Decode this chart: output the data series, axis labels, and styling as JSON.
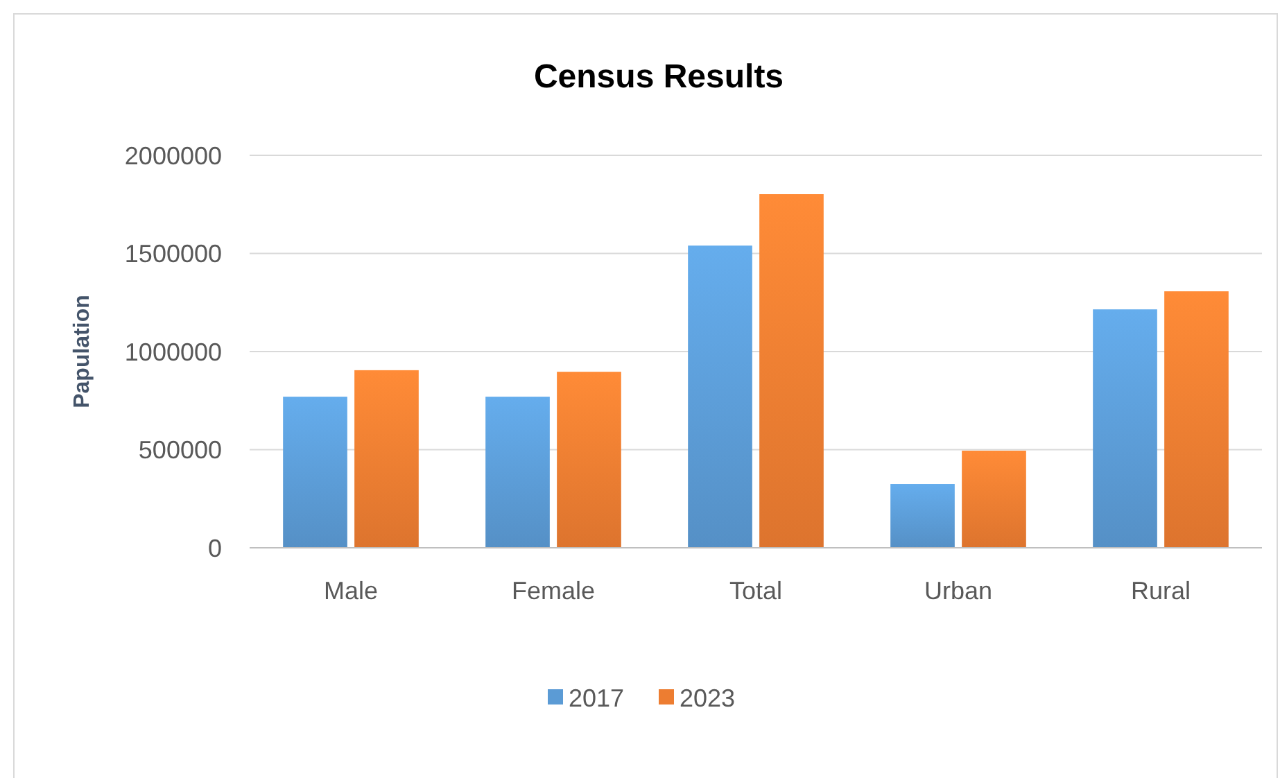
{
  "chart_data": {
    "type": "bar",
    "title": "Census Results",
    "ylabel": "Papulation",
    "categories": [
      "Male",
      "Female",
      "Total",
      "Urban",
      "Rural"
    ],
    "series": [
      {
        "name": "2017",
        "color": "#5b9bd5",
        "values": [
          770000,
          770000,
          1540000,
          325000,
          1215000
        ]
      },
      {
        "name": "2023",
        "color": "#ed7d31",
        "values": [
          905000,
          897000,
          1802000,
          495000,
          1307000
        ]
      }
    ],
    "ylim": [
      0,
      2000000
    ],
    "yticks": [
      0,
      500000,
      1000000,
      1500000,
      2000000
    ],
    "grid": "y",
    "legend": "bottom"
  }
}
